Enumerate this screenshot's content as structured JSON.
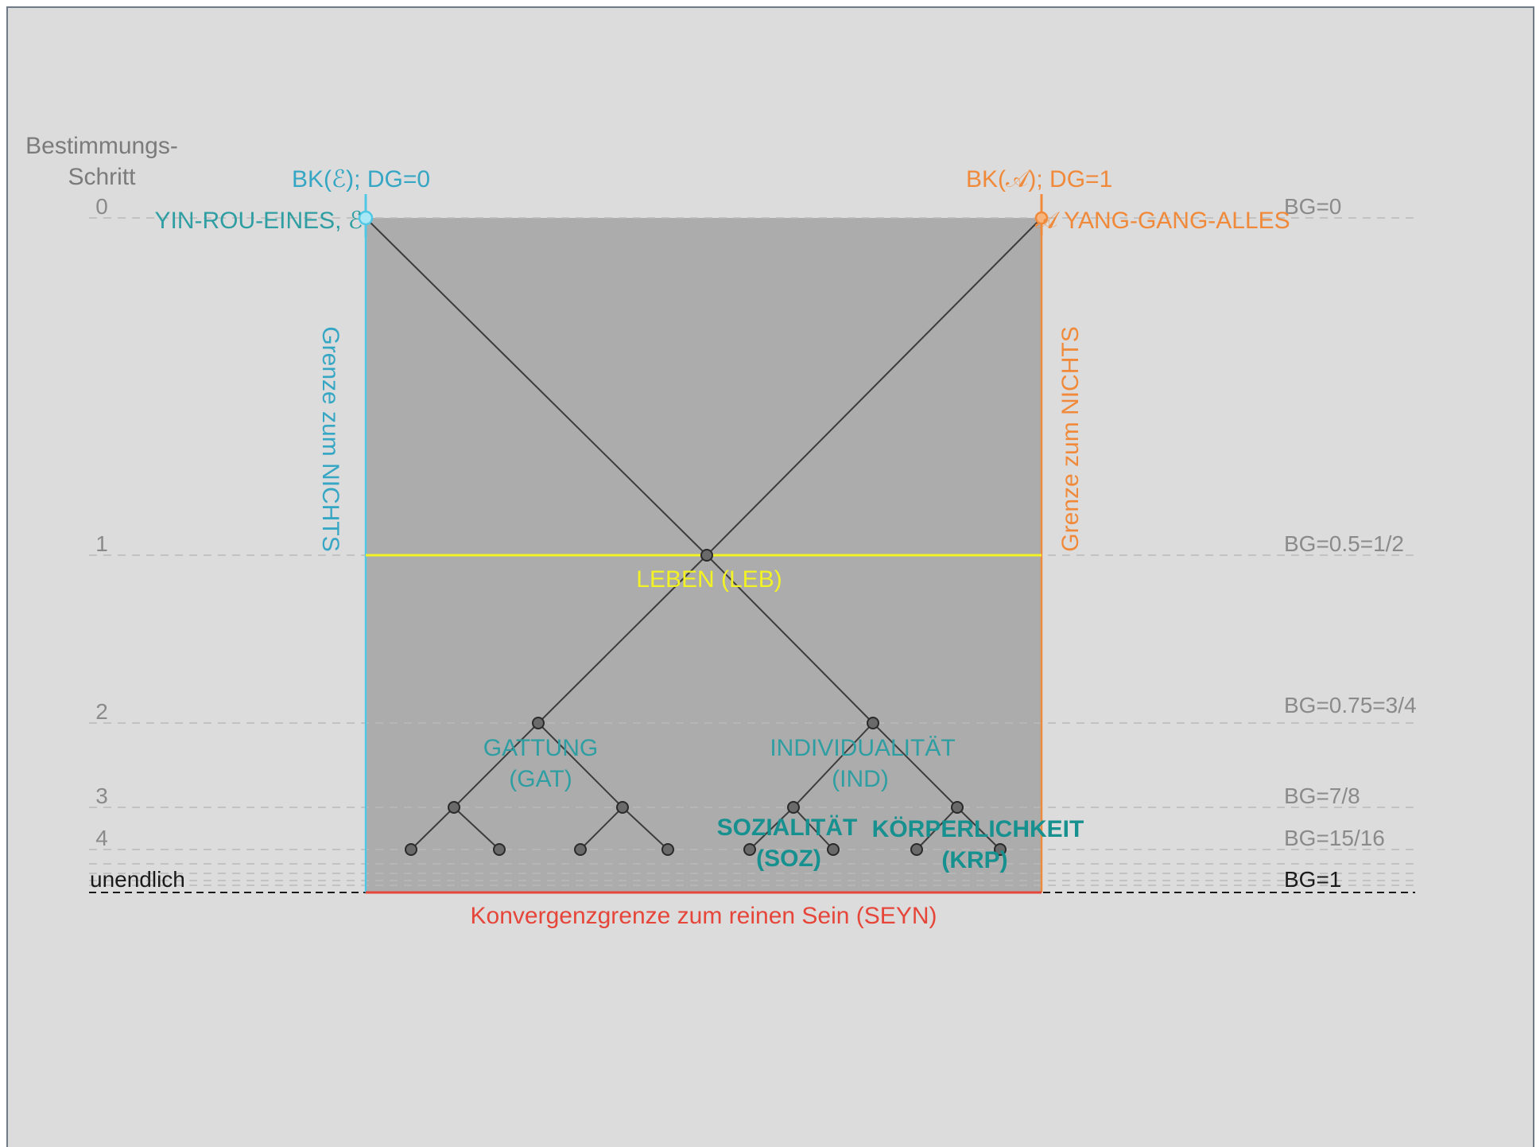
{
  "colors": {
    "background": "#dcdcdc",
    "frame": "#6f7a86",
    "box_fill": "#acacac",
    "cyan": "#4fc8e6",
    "cyan_text": "#35a6c4",
    "teal_text": "#2e9ea2",
    "teal_bold": "#17918f",
    "orange": "#f08a3a",
    "yellow": "#f2f224",
    "red": "#e6463a",
    "grey_text": "#7b7b7b",
    "black": "#1a1a1a",
    "node_fill": "#6a6a6a"
  },
  "left_axis": {
    "title_line1": "Bestimmungs-",
    "title_line2": "Schritt",
    "step_0": "0",
    "step_1": "1",
    "step_2": "2",
    "step_3": "3",
    "step_4": "4",
    "step_infinite": "unendlich"
  },
  "right_axis": {
    "bg_0": "BG=0",
    "bg_1": "BG=0.5=1/2",
    "bg_2": "BG=0.75=3/4",
    "bg_3": "BG=7/8",
    "bg_4": "BG=15/16",
    "bg_infinite": "BG=1"
  },
  "left_pole": {
    "header": "BK(ℰ); DG=0",
    "name": "YIN-ROU-EINES, ℰ",
    "border_label": "Grenze zum NICHTS"
  },
  "right_pole": {
    "header": "BK(𝒜); DG=1",
    "name": "𝒜 YANG-GANG-ALLES",
    "border_label": "Grenze zum NICHTS"
  },
  "nodes": {
    "leben": "LEBEN (LEB)",
    "gattung_line1": "GATTUNG",
    "gattung_line2": "(GAT)",
    "individualitaet_line1": "INDIVIDUALITÄT",
    "individualitaet_line2": "(IND)",
    "sozialitaet_line1": "SOZIALITÄT",
    "sozialitaet_line2": "(SOZ)",
    "koerperlichkeit_line1": "KÖRPERLICHKEIT",
    "koerperlichkeit_line2": "(KRP)"
  },
  "bottom_label": "Konvergenzgrenze zum reinen Sein (SEYN)"
}
